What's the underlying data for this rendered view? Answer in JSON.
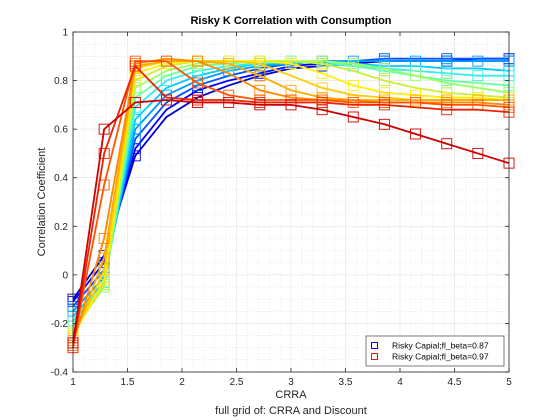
{
  "chart_data": {
    "type": "line",
    "title": "Risky K Correlation with Consumption",
    "xlabel": "CRRA",
    "ylabel": "Correlation Coefficient",
    "caption": "full grid of: CRRA and Discount",
    "xlim": [
      1,
      5
    ],
    "ylim": [
      -0.4,
      1
    ],
    "xticks": [
      1,
      1.5,
      2,
      2.5,
      3,
      3.5,
      4,
      4.5,
      5
    ],
    "xtick_labels": [
      "1",
      "1.5",
      "2",
      "2.5",
      "3",
      "3.5",
      "4",
      "4.5",
      "5"
    ],
    "yticks": [
      -0.4,
      -0.2,
      0,
      0.2,
      0.4,
      0.6,
      0.8,
      1
    ],
    "ytick_labels": [
      "-0.4",
      "-0.2",
      "0",
      "0.2",
      "0.4",
      "0.6",
      "0.8",
      "1"
    ],
    "grid": "minor-dotted",
    "legend": {
      "placement": "bottom-right",
      "entries": [
        {
          "label": "Risky Capial;fl_beta=0.87",
          "color": "#0000ff"
        },
        {
          "label": "Risky Capial;fl_beta=0.97",
          "color": "#dd2200"
        }
      ]
    },
    "x": [
      1,
      1.2857,
      1.5714,
      1.8571,
      2.1429,
      2.4286,
      2.7143,
      3,
      3.2857,
      3.5714,
      3.8571,
      4.1429,
      4.4286,
      4.7143,
      5
    ],
    "series": [
      {
        "color": "#0000cc",
        "marker_stride": 2,
        "values": [
          -0.1,
          0.08,
          0.49,
          0.65,
          0.73,
          0.78,
          0.82,
          0.85,
          0.86,
          0.87,
          0.88,
          0.88,
          0.88,
          0.88,
          0.88
        ]
      },
      {
        "color": "#0000ff",
        "marker_stride": 2,
        "values": [
          -0.11,
          0.05,
          0.52,
          0.68,
          0.76,
          0.8,
          0.83,
          0.86,
          0.87,
          0.88,
          0.88,
          0.88,
          0.88,
          0.89,
          0.89
        ]
      },
      {
        "color": "#0055ff",
        "marker_stride": 2,
        "values": [
          -0.13,
          0.02,
          0.56,
          0.71,
          0.78,
          0.82,
          0.85,
          0.87,
          0.88,
          0.88,
          0.89,
          0.89,
          0.89,
          0.89,
          0.89
        ]
      },
      {
        "color": "#0099ff",
        "marker_stride": 1,
        "values": [
          -0.15,
          -0.01,
          0.6,
          0.74,
          0.8,
          0.84,
          0.86,
          0.87,
          0.88,
          0.88,
          0.88,
          0.88,
          0.88,
          0.88,
          0.88
        ]
      },
      {
        "color": "#00ccff",
        "marker_stride": 2,
        "values": [
          -0.17,
          -0.03,
          0.64,
          0.77,
          0.82,
          0.85,
          0.87,
          0.87,
          0.88,
          0.87,
          0.86,
          0.86,
          0.85,
          0.85,
          0.84
        ]
      },
      {
        "color": "#33eeee",
        "marker_stride": 1,
        "values": [
          -0.19,
          -0.04,
          0.69,
          0.8,
          0.84,
          0.86,
          0.87,
          0.88,
          0.87,
          0.86,
          0.85,
          0.84,
          0.83,
          0.82,
          0.82
        ]
      },
      {
        "color": "#66ffaa",
        "marker_stride": 2,
        "values": [
          -0.21,
          -0.05,
          0.73,
          0.82,
          0.86,
          0.87,
          0.88,
          0.88,
          0.88,
          0.86,
          0.84,
          0.82,
          0.8,
          0.79,
          0.78
        ]
      },
      {
        "color": "#99ff66",
        "marker_stride": 1,
        "values": [
          -0.23,
          -0.05,
          0.77,
          0.84,
          0.87,
          0.88,
          0.88,
          0.88,
          0.88,
          0.87,
          0.85,
          0.82,
          0.79,
          0.77,
          0.75
        ]
      },
      {
        "color": "#ccee33",
        "marker_stride": 2,
        "values": [
          -0.24,
          -0.04,
          0.8,
          0.86,
          0.88,
          0.88,
          0.88,
          0.88,
          0.87,
          0.84,
          0.8,
          0.77,
          0.75,
          0.74,
          0.73
        ]
      },
      {
        "color": "#ffee00",
        "marker_stride": 1,
        "values": [
          -0.25,
          -0.02,
          0.83,
          0.87,
          0.88,
          0.88,
          0.88,
          0.87,
          0.83,
          0.78,
          0.75,
          0.74,
          0.73,
          0.73,
          0.72
        ]
      },
      {
        "color": "#ffcc00",
        "marker_stride": 2,
        "values": [
          -0.26,
          0.02,
          0.85,
          0.88,
          0.88,
          0.88,
          0.87,
          0.82,
          0.77,
          0.74,
          0.73,
          0.72,
          0.72,
          0.72,
          0.72
        ]
      },
      {
        "color": "#ffaa00",
        "marker_stride": 1,
        "values": [
          -0.27,
          0.07,
          0.86,
          0.88,
          0.88,
          0.87,
          0.82,
          0.76,
          0.73,
          0.72,
          0.72,
          0.72,
          0.72,
          0.72,
          0.72
        ]
      },
      {
        "color": "#ff8800",
        "marker_stride": 2,
        "values": [
          -0.28,
          0.15,
          0.87,
          0.89,
          0.88,
          0.83,
          0.76,
          0.73,
          0.72,
          0.72,
          0.71,
          0.71,
          0.71,
          0.71,
          0.7
        ]
      },
      {
        "color": "#ff5500",
        "marker_stride": 1,
        "values": [
          -0.29,
          0.37,
          0.88,
          0.88,
          0.79,
          0.74,
          0.72,
          0.72,
          0.72,
          0.71,
          0.71,
          0.71,
          0.7,
          0.7,
          0.69
        ]
      },
      {
        "color": "#ee2200",
        "marker_stride": 2,
        "values": [
          -0.3,
          0.5,
          0.86,
          0.73,
          0.72,
          0.72,
          0.71,
          0.71,
          0.71,
          0.7,
          0.7,
          0.69,
          0.68,
          0.68,
          0.67
        ]
      },
      {
        "color": "#cc0000",
        "marker_stride": 1,
        "values": [
          -0.28,
          0.6,
          0.71,
          0.72,
          0.71,
          0.71,
          0.7,
          0.7,
          0.68,
          0.65,
          0.62,
          0.58,
          0.54,
          0.5,
          0.46
        ]
      }
    ]
  }
}
